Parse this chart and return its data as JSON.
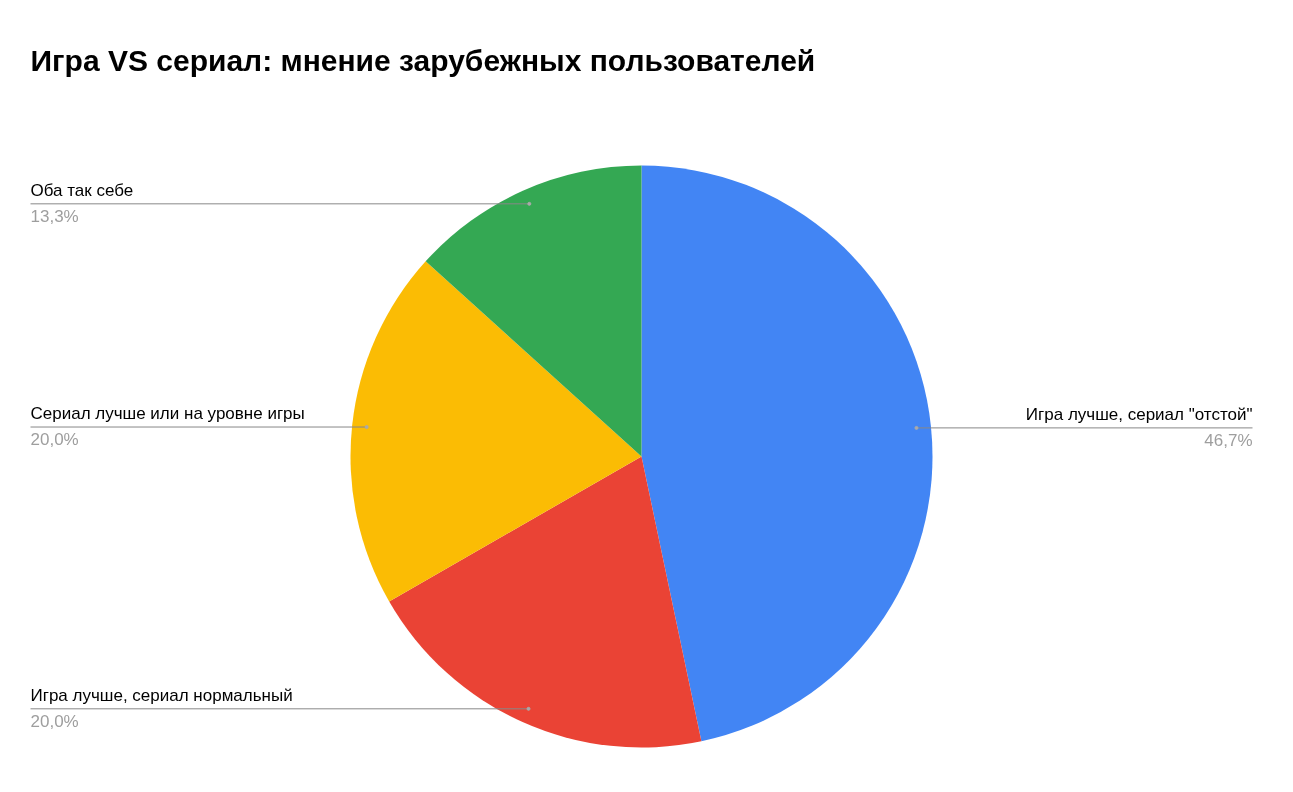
{
  "chart_data": {
    "type": "pie",
    "title": "Игра VS сериал: мнение зарубежных пользователей",
    "categories": [
      "Игра лучше, сериал \"отстой\"",
      "Игра лучше, сериал нормальный",
      "Сериал лучше или на уровне игры",
      "Оба так себе"
    ],
    "values": [
      46.7,
      20.0,
      20.0,
      13.3
    ],
    "value_labels": [
      "46,7%",
      "20,0%",
      "20,0%",
      "13,3%"
    ],
    "colors": [
      "#4285f4",
      "#ea4335",
      "#fbbc04",
      "#34a853"
    ]
  }
}
